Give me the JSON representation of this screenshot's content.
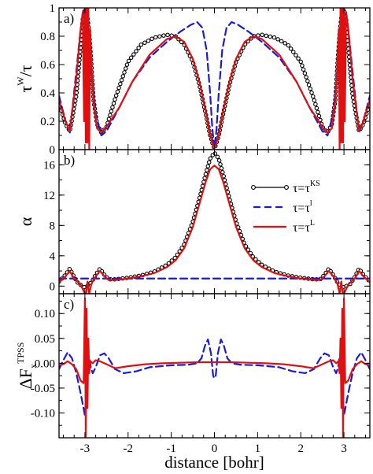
{
  "chart_data": [
    {
      "type": "line",
      "panel_label": "a)",
      "ylabel_main": "τ",
      "ylabel_sup": "W",
      "ylabel_tail": "/τ",
      "xlim": [
        -3.6,
        3.6
      ],
      "ylim": [
        0,
        1
      ],
      "yticks": [
        0,
        0.2,
        0.4,
        0.6,
        0.8,
        1
      ],
      "yticklabels": [
        "0",
        "0.2",
        "0.4",
        "0.6",
        "0.8",
        "1"
      ],
      "series": [
        {
          "key": "ks",
          "color": "#000000",
          "dash": "solid",
          "markers": true,
          "x": [
            -3.6,
            -3.45,
            -3.35,
            -3.2,
            -3.1,
            -3.05,
            -3.0,
            -2.95,
            -2.9,
            -2.85,
            -2.8,
            -2.72,
            -2.62,
            -2.5,
            -2.3,
            -2.0,
            -1.7,
            -1.4,
            -1.1,
            -0.9,
            -0.7,
            -0.5,
            -0.35,
            -0.2,
            -0.1,
            -0.03,
            0.0,
            0.03,
            0.1,
            0.2,
            0.35,
            0.5,
            0.7,
            0.9,
            1.1,
            1.4,
            1.7,
            2.0,
            2.3,
            2.5,
            2.62,
            2.72,
            2.8,
            2.85,
            2.9,
            2.95,
            3.0,
            3.05,
            3.1,
            3.2,
            3.35,
            3.45,
            3.6
          ],
          "y": [
            0.33,
            0.18,
            0.13,
            0.38,
            0.72,
            0.92,
            0.99,
            0.96,
            0.82,
            0.6,
            0.35,
            0.18,
            0.12,
            0.16,
            0.36,
            0.62,
            0.74,
            0.79,
            0.81,
            0.8,
            0.74,
            0.62,
            0.46,
            0.25,
            0.1,
            0.03,
            0.01,
            0.03,
            0.1,
            0.25,
            0.46,
            0.62,
            0.74,
            0.8,
            0.81,
            0.79,
            0.74,
            0.62,
            0.36,
            0.16,
            0.12,
            0.18,
            0.35,
            0.6,
            0.82,
            0.96,
            0.99,
            0.92,
            0.72,
            0.38,
            0.13,
            0.18,
            0.33
          ]
        },
        {
          "key": "l1",
          "color": "#1a1adc",
          "dash": "dashed",
          "markers": false,
          "x": [
            -3.6,
            -3.45,
            -3.35,
            -3.2,
            -3.1,
            -3.02,
            -2.98,
            -2.92,
            -2.85,
            -2.75,
            -2.62,
            -2.5,
            -2.2,
            -1.9,
            -1.5,
            -1.1,
            -0.8,
            -0.55,
            -0.4,
            -0.28,
            -0.18,
            -0.1,
            -0.05,
            0.0,
            0.05,
            0.1,
            0.18,
            0.28,
            0.4,
            0.55,
            0.8,
            1.1,
            1.5,
            1.9,
            2.2,
            2.5,
            2.62,
            2.75,
            2.85,
            2.92,
            2.98,
            3.02,
            3.1,
            3.2,
            3.35,
            3.45,
            3.6
          ],
          "y": [
            0.38,
            0.2,
            0.12,
            0.55,
            0.85,
            0.98,
            0.98,
            0.85,
            0.55,
            0.25,
            0.1,
            0.13,
            0.3,
            0.48,
            0.65,
            0.76,
            0.83,
            0.88,
            0.9,
            0.86,
            0.7,
            0.4,
            0.15,
            0.01,
            0.15,
            0.4,
            0.7,
            0.86,
            0.9,
            0.88,
            0.83,
            0.76,
            0.65,
            0.48,
            0.3,
            0.13,
            0.1,
            0.25,
            0.55,
            0.85,
            0.98,
            0.98,
            0.85,
            0.55,
            0.12,
            0.2,
            0.38
          ]
        },
        {
          "key": "lap",
          "color": "#e01010",
          "dash": "solid",
          "markers": false,
          "x": [
            -3.6,
            -3.45,
            -3.35,
            -3.2,
            -3.1,
            -3.05,
            -3.02,
            -3.0,
            -2.98,
            -2.96,
            -2.94,
            -2.92,
            -2.9,
            -2.88,
            -2.85,
            -2.8,
            -2.72,
            -2.62,
            -2.5,
            -2.2,
            -1.9,
            -1.5,
            -1.1,
            -0.9,
            -0.7,
            -0.5,
            -0.35,
            -0.2,
            -0.1,
            -0.03,
            0.0,
            0.03,
            0.1,
            0.2,
            0.35,
            0.5,
            0.7,
            0.9,
            1.1,
            1.5,
            1.9,
            2.2,
            2.5,
            2.62,
            2.72,
            2.8,
            2.85,
            2.88,
            2.9,
            2.92,
            2.94,
            2.96,
            2.98,
            3.0,
            3.02,
            3.05,
            3.1,
            3.2,
            3.35,
            3.45,
            3.6
          ],
          "y": [
            0.35,
            0.2,
            0.13,
            0.5,
            0.85,
            0.97,
            0.2,
            1.0,
            0.05,
            1.0,
            0.05,
            1.0,
            0.0,
            0.85,
            0.6,
            0.35,
            0.15,
            0.12,
            0.16,
            0.3,
            0.48,
            0.67,
            0.78,
            0.8,
            0.76,
            0.64,
            0.48,
            0.27,
            0.1,
            0.03,
            0.01,
            0.03,
            0.1,
            0.27,
            0.48,
            0.64,
            0.76,
            0.8,
            0.78,
            0.67,
            0.48,
            0.3,
            0.16,
            0.12,
            0.15,
            0.35,
            0.6,
            0.85,
            0.0,
            1.0,
            0.05,
            1.0,
            0.05,
            1.0,
            0.2,
            0.97,
            0.85,
            0.5,
            0.13,
            0.2,
            0.35
          ]
        }
      ]
    },
    {
      "type": "line",
      "panel_label": "b)",
      "ylabel_main": "α",
      "xlim": [
        -3.6,
        3.6
      ],
      "ylim": [
        -1,
        18
      ],
      "yticks": [
        0,
        4,
        8,
        12,
        16
      ],
      "yticklabels": [
        "0",
        "4",
        "8",
        "12",
        "16"
      ],
      "legend": [
        {
          "key": "ks",
          "base": "τ=τ",
          "sup": "KS"
        },
        {
          "key": "l1",
          "base": "τ=τ",
          "sup": "l"
        },
        {
          "key": "lap",
          "base": "τ=τ",
          "sup": "L"
        }
      ],
      "series": [
        {
          "key": "ks",
          "color": "#000000",
          "dash": "solid",
          "markers": true,
          "x": [
            -3.6,
            -3.45,
            -3.35,
            -3.25,
            -3.15,
            -3.05,
            -3.0,
            -2.95,
            -2.85,
            -2.75,
            -2.65,
            -2.55,
            -2.45,
            -2.3,
            -2.0,
            -1.7,
            -1.4,
            -1.1,
            -0.9,
            -0.7,
            -0.5,
            -0.35,
            -0.2,
            -0.1,
            0.0,
            0.1,
            0.2,
            0.35,
            0.5,
            0.7,
            0.9,
            1.1,
            1.4,
            1.7,
            2.0,
            2.3,
            2.45,
            2.55,
            2.65,
            2.75,
            2.85,
            2.95,
            3.0,
            3.05,
            3.15,
            3.25,
            3.35,
            3.45,
            3.6
          ],
          "y": [
            0.6,
            1.5,
            2.3,
            1.2,
            0.3,
            0.0,
            -0.2,
            0.0,
            0.5,
            1.5,
            2.3,
            1.5,
            0.9,
            0.9,
            1.1,
            1.4,
            1.9,
            2.8,
            3.8,
            5.5,
            8.5,
            11.5,
            14.8,
            16.8,
            17.6,
            16.8,
            14.8,
            11.5,
            8.5,
            5.5,
            3.8,
            2.8,
            1.9,
            1.4,
            1.1,
            0.9,
            0.9,
            1.5,
            2.3,
            1.5,
            0.5,
            0.0,
            -0.2,
            0.0,
            0.3,
            1.2,
            2.3,
            1.5,
            0.6
          ]
        },
        {
          "key": "l1",
          "color": "#1a1adc",
          "dash": "dashed",
          "markers": false,
          "x": [
            -3.6,
            -3.0,
            -2.6,
            -2.0,
            -1.0,
            0.0,
            1.0,
            2.0,
            2.6,
            3.0,
            3.6
          ],
          "y": [
            1.0,
            1.0,
            1.0,
            1.0,
            1.0,
            1.0,
            1.0,
            1.0,
            1.0,
            1.0,
            1.0
          ]
        },
        {
          "key": "lap",
          "color": "#e01010",
          "dash": "solid",
          "markers": false,
          "x": [
            -3.6,
            -3.45,
            -3.35,
            -3.25,
            -3.1,
            -3.0,
            -2.97,
            -2.94,
            -2.9,
            -2.85,
            -2.75,
            -2.65,
            -2.55,
            -2.45,
            -2.3,
            -2.0,
            -1.7,
            -1.4,
            -1.1,
            -0.9,
            -0.7,
            -0.5,
            -0.35,
            -0.2,
            -0.1,
            0.0,
            0.1,
            0.2,
            0.35,
            0.5,
            0.7,
            0.9,
            1.1,
            1.4,
            1.7,
            2.0,
            2.3,
            2.45,
            2.55,
            2.65,
            2.75,
            2.85,
            2.9,
            2.94,
            2.97,
            3.0,
            3.1,
            3.25,
            3.35,
            3.45,
            3.6
          ],
          "y": [
            0.5,
            1.3,
            2.0,
            1.0,
            0.2,
            -1.0,
            -1.0,
            0.6,
            -1.0,
            0.3,
            1.3,
            2.0,
            1.3,
            0.8,
            0.8,
            1.0,
            1.3,
            1.7,
            2.5,
            3.4,
            5.0,
            7.8,
            10.8,
            13.8,
            15.4,
            15.9,
            15.4,
            13.8,
            10.8,
            7.8,
            5.0,
            3.4,
            2.5,
            1.7,
            1.3,
            1.0,
            0.8,
            0.8,
            1.3,
            2.0,
            1.3,
            0.3,
            -1.0,
            0.6,
            -1.0,
            -1.0,
            0.2,
            1.0,
            2.0,
            1.3,
            0.5
          ]
        }
      ]
    },
    {
      "type": "line",
      "panel_label": "c)",
      "ylabel_main": "ΔF",
      "ylabel_sub": "x",
      "ylabel_sup": "TPSS",
      "xlabel": "distance [bohr]",
      "xlim": [
        -3.6,
        3.6
      ],
      "ylim": [
        -0.15,
        0.14
      ],
      "xticks": [
        -3,
        -2,
        -1,
        0,
        1,
        2,
        3
      ],
      "xticklabels": [
        "-3",
        "-2",
        "-1",
        "0",
        "1",
        "2",
        "3"
      ],
      "yticks": [
        -0.1,
        -0.05,
        0.0,
        0.05,
        0.1
      ],
      "yticklabels": [
        "-0.10",
        "-0.05",
        "0.00",
        "0.05",
        "0.10"
      ],
      "series": [
        {
          "key": "l1",
          "color": "#1a1adc",
          "dash": "dashed",
          "markers": false,
          "x": [
            -3.6,
            -3.5,
            -3.4,
            -3.3,
            -3.2,
            -3.1,
            -3.0,
            -2.97,
            -2.94,
            -2.9,
            -2.86,
            -2.82,
            -2.75,
            -2.65,
            -2.55,
            -2.45,
            -2.3,
            -2.1,
            -1.8,
            -1.5,
            -1.0,
            -0.6,
            -0.4,
            -0.3,
            -0.22,
            -0.15,
            -0.08,
            -0.03,
            0.0,
            0.03,
            0.08,
            0.15,
            0.22,
            0.3,
            0.4,
            0.6,
            1.0,
            1.5,
            1.8,
            2.1,
            2.3,
            2.45,
            2.55,
            2.65,
            2.75,
            2.82,
            2.86,
            2.9,
            2.94,
            2.97,
            3.0,
            3.1,
            3.2,
            3.3,
            3.4,
            3.5,
            3.6
          ],
          "y": [
            -0.012,
            0.006,
            0.022,
            0.01,
            -0.02,
            -0.06,
            -0.105,
            -0.06,
            0.02,
            0.012,
            -0.01,
            -0.02,
            -0.008,
            0.016,
            0.02,
            0.01,
            -0.012,
            -0.02,
            -0.016,
            -0.008,
            -0.004,
            -0.003,
            0.0,
            0.01,
            0.035,
            0.048,
            0.02,
            -0.025,
            -0.03,
            -0.025,
            0.02,
            0.048,
            0.035,
            0.01,
            0.0,
            -0.003,
            -0.004,
            -0.008,
            -0.016,
            -0.02,
            -0.012,
            0.01,
            0.02,
            0.016,
            -0.008,
            -0.02,
            -0.01,
            0.012,
            0.02,
            -0.06,
            -0.105,
            -0.06,
            -0.02,
            0.01,
            0.022,
            0.006,
            -0.012
          ]
        },
        {
          "key": "lap",
          "color": "#e01010",
          "dash": "solid",
          "markers": false,
          "x": [
            -3.6,
            -3.5,
            -3.4,
            -3.3,
            -3.2,
            -3.1,
            -3.03,
            -3.0,
            -2.98,
            -2.96,
            -2.94,
            -2.92,
            -2.9,
            -2.87,
            -2.82,
            -2.75,
            -2.65,
            -2.5,
            -2.3,
            -2.0,
            -1.6,
            -1.2,
            -0.8,
            -0.4,
            0.0,
            0.4,
            0.8,
            1.2,
            1.6,
            2.0,
            2.3,
            2.5,
            2.65,
            2.75,
            2.82,
            2.87,
            2.9,
            2.92,
            2.94,
            2.96,
            2.98,
            3.0,
            3.03,
            3.1,
            3.2,
            3.3,
            3.4,
            3.5,
            3.6
          ],
          "y": [
            -0.004,
            -0.002,
            0.004,
            -0.002,
            -0.012,
            -0.035,
            -0.04,
            0.13,
            -0.15,
            0.11,
            -0.09,
            0.05,
            -0.02,
            0.004,
            0.0,
            0.006,
            0.004,
            -0.002,
            -0.01,
            -0.006,
            -0.002,
            0.0,
            0.001,
            0.002,
            0.002,
            0.002,
            0.001,
            0.0,
            -0.002,
            -0.006,
            -0.01,
            -0.002,
            0.004,
            0.006,
            0.0,
            0.004,
            -0.02,
            0.05,
            -0.09,
            0.11,
            -0.15,
            0.13,
            -0.04,
            -0.035,
            -0.012,
            -0.002,
            0.004,
            -0.002,
            -0.004
          ]
        }
      ]
    }
  ]
}
